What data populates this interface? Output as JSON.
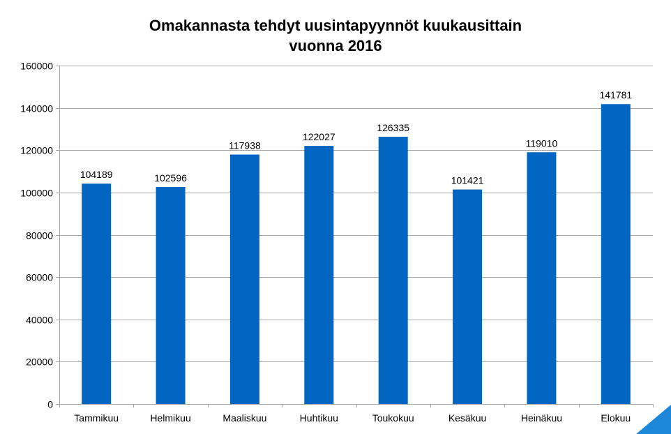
{
  "chart_data": {
    "type": "bar",
    "title_lines": [
      "Omakannasta tehdyt uusintapyynnöt kuukausittain",
      "vuonna 2016"
    ],
    "categories": [
      "Tammikuu",
      "Helmikuu",
      "Maaliskuu",
      "Huhtikuu",
      "Toukokuu",
      "Kesäkuu",
      "Heinäkuu",
      "Elokuu"
    ],
    "values": [
      104189,
      102596,
      117938,
      122027,
      126335,
      101421,
      119010,
      141781
    ],
    "value_labels": [
      "104189",
      "102596",
      "117938",
      "122027",
      "126335",
      "101421",
      "119010",
      "141781"
    ],
    "ylim": [
      0,
      160000
    ],
    "yticks": [
      0,
      20000,
      40000,
      60000,
      80000,
      100000,
      120000,
      140000,
      160000
    ],
    "ytick_labels": [
      "0",
      "20000",
      "40000",
      "60000",
      "80000",
      "100000",
      "120000",
      "140000",
      "160000"
    ],
    "grid": true,
    "legend": false,
    "bar_color": "#0066C2",
    "grid_color": "#a6a6a6",
    "corner_accent_color": "#1e88d8"
  }
}
